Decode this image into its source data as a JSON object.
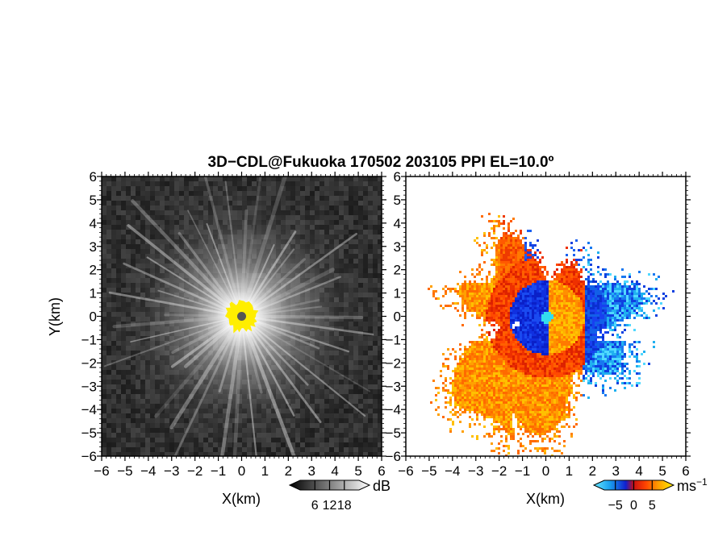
{
  "title": "3D−CDL@Fukuoka 170502 203105 PPI EL=10.0º",
  "colors": {
    "missing": "#ffffff",
    "center_marker": "#555555",
    "yellow_region": "#ffee00",
    "velocity_center": "#33ddee"
  },
  "chart_data": [
    {
      "type": "heatmap",
      "quantity": "backscatter intensity",
      "xlabel": "X(km)",
      "ylabel": "Y(km)",
      "xlim": [
        -6,
        6
      ],
      "ylim": [
        -6,
        6
      ],
      "xticks": [
        -6,
        -5,
        -4,
        -3,
        -2,
        -1,
        0,
        1,
        2,
        3,
        4,
        5,
        6
      ],
      "yticks": [
        -6,
        -5,
        -4,
        -3,
        -2,
        -1,
        0,
        1,
        2,
        3,
        4,
        5,
        6
      ],
      "xtick_labels": [
        "−6",
        "−5",
        "−4",
        "−3",
        "−2",
        "−1",
        "0",
        "1",
        "2",
        "3",
        "4",
        "5",
        "6"
      ],
      "ytick_labels": [
        "−6",
        "−5",
        "−4",
        "−3",
        "−2",
        "−1",
        "0",
        "1",
        "2",
        "3",
        "4",
        "5",
        "6"
      ],
      "colorbar": {
        "unit": "dB",
        "range": [
          0,
          24
        ],
        "ticks": [
          6,
          12,
          18
        ],
        "tick_labels": [
          "6",
          "12",
          "18"
        ],
        "colormap": "grayscale"
      }
    },
    {
      "type": "heatmap",
      "quantity": "radial velocity",
      "xlabel": "X(km)",
      "xlim": [
        -6,
        6
      ],
      "ylim": [
        -6,
        6
      ],
      "xticks": [
        -6,
        -5,
        -4,
        -3,
        -2,
        -1,
        0,
        1,
        2,
        3,
        4,
        5,
        6
      ],
      "yticks": [
        -6,
        -5,
        -4,
        -3,
        -2,
        -1,
        0,
        1,
        2,
        3,
        4,
        5,
        6
      ],
      "xtick_labels": [
        "−6",
        "−5",
        "−4",
        "−3",
        "−2",
        "−1",
        "0",
        "1",
        "2",
        "3",
        "4",
        "5",
        "6"
      ],
      "ytick_labels": [
        "−6",
        "−5",
        "−4",
        "−3",
        "−2",
        "−1",
        "0",
        "1",
        "2",
        "3",
        "4",
        "5",
        "6"
      ],
      "colorbar": {
        "unit": "ms",
        "unit_exponent": "−1",
        "range": [
          -8,
          8
        ],
        "ticks": [
          -5,
          0,
          5
        ],
        "tick_labels": [
          "−5",
          "0",
          "5"
        ],
        "colormap": "cyan-blue-red-orange-yellow"
      }
    }
  ]
}
